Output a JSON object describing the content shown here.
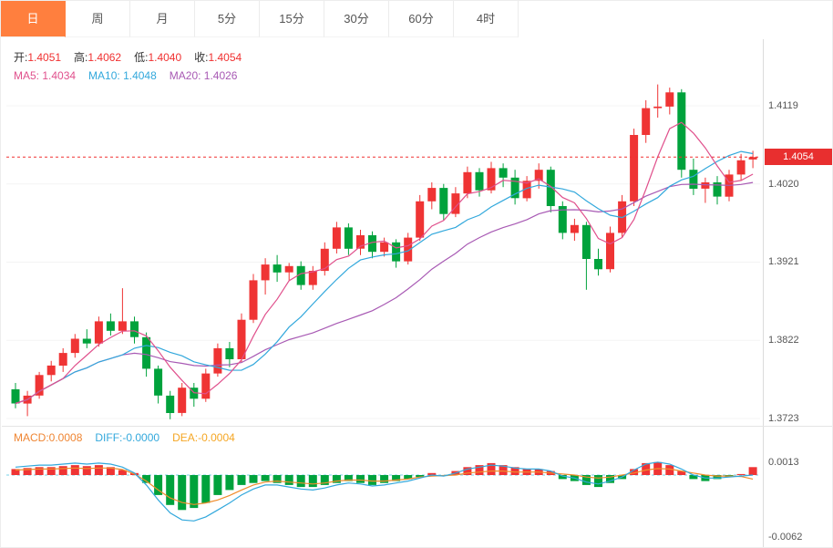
{
  "tabs": [
    {
      "name": "day",
      "label": "日",
      "active": true
    },
    {
      "name": "week",
      "label": "周",
      "active": false
    },
    {
      "name": "month",
      "label": "月",
      "active": false
    },
    {
      "name": "5min",
      "label": "5分",
      "active": false
    },
    {
      "name": "15min",
      "label": "15分",
      "active": false
    },
    {
      "name": "30min",
      "label": "30分",
      "active": false
    },
    {
      "name": "60min",
      "label": "60分",
      "active": false
    },
    {
      "name": "4hour",
      "label": "4时",
      "active": false
    }
  ],
  "info": {
    "ohlc": [
      {
        "name": "open",
        "label": "开:",
        "value": "1.4051"
      },
      {
        "name": "high",
        "label": "高:",
        "value": "1.4062"
      },
      {
        "name": "low",
        "label": "低:",
        "value": "1.4040"
      },
      {
        "name": "close",
        "label": "收:",
        "value": "1.4054"
      }
    ],
    "ma": [
      {
        "name": "ma5",
        "label": "MA5: ",
        "value": "1.4034",
        "color": "#e0508c"
      },
      {
        "name": "ma10",
        "label": "MA10: ",
        "value": "1.4048",
        "color": "#32a8dc"
      },
      {
        "name": "ma20",
        "label": "MA20: ",
        "value": "1.4026",
        "color": "#a85ab4"
      }
    ],
    "macd": [
      {
        "name": "macd",
        "label": "MACD:",
        "value": "0.0008",
        "color": "#ef8532"
      },
      {
        "name": "diff",
        "label": "DIFF:",
        "value": "-0.0000",
        "color": "#32a8dc"
      },
      {
        "name": "dea",
        "label": "DEA:",
        "value": "-0.0004",
        "color": "#f5a623"
      }
    ]
  },
  "axis": {
    "current_price": "1.4054"
  },
  "colors": {
    "up": "#ef3434",
    "down": "#00a23c",
    "tab_active": "#ff7f3e",
    "price_line": "#f03030",
    "price_badge_bg": "#e82f2f",
    "macd_zero_line": "#7ad0e8",
    "diff_line": "#32a8dc",
    "dea_line": "#f08c2c",
    "ma5_line": "#e0508c",
    "ma10_line": "#32a8dc",
    "ma20_line": "#a85ab4"
  },
  "chart_data": [
    {
      "type": "candlestick",
      "name": "daily-kline",
      "ohlc_display": {
        "open": 1.4051,
        "high": 1.4062,
        "low": 1.404,
        "close": 1.4054
      },
      "ma_display": {
        "MA5": 1.4034,
        "MA10": 1.4048,
        "MA20": 1.4026
      },
      "current_price": 1.4054,
      "y_axis_ticks": [
        1.4119,
        1.402,
        1.3921,
        1.3822,
        1.3723
      ],
      "ylim": [
        1.37,
        1.42
      ],
      "candles": [
        [
          1.376,
          1.3768,
          1.3736,
          1.3742
        ],
        [
          1.3742,
          1.3758,
          1.3726,
          1.3752
        ],
        [
          1.3752,
          1.3782,
          1.3748,
          1.3778
        ],
        [
          1.3778,
          1.3796,
          1.377,
          1.379
        ],
        [
          1.379,
          1.3812,
          1.3782,
          1.3806
        ],
        [
          1.3806,
          1.383,
          1.38,
          1.3824
        ],
        [
          1.3824,
          1.3836,
          1.3812,
          1.3818
        ],
        [
          1.3818,
          1.3852,
          1.3814,
          1.3846
        ],
        [
          1.3846,
          1.3856,
          1.3828,
          1.3834
        ],
        [
          1.3834,
          1.3888,
          1.383,
          1.3846
        ],
        [
          1.3846,
          1.3852,
          1.3818,
          1.3826
        ],
        [
          1.3826,
          1.3832,
          1.3776,
          1.3786
        ],
        [
          1.3786,
          1.379,
          1.3742,
          1.3752
        ],
        [
          1.3752,
          1.3758,
          1.3722,
          1.373
        ],
        [
          1.373,
          1.3768,
          1.3726,
          1.3762
        ],
        [
          1.3762,
          1.3768,
          1.3738,
          1.3748
        ],
        [
          1.3748,
          1.3786,
          1.3744,
          1.378
        ],
        [
          1.378,
          1.3818,
          1.3776,
          1.3812
        ],
        [
          1.3812,
          1.382,
          1.3788,
          1.3798
        ],
        [
          1.3798,
          1.3856,
          1.3794,
          1.3848
        ],
        [
          1.3848,
          1.3906,
          1.3844,
          1.3898
        ],
        [
          1.3898,
          1.3926,
          1.388,
          1.3918
        ],
        [
          1.3918,
          1.393,
          1.3896,
          1.3908
        ],
        [
          1.3908,
          1.392,
          1.3898,
          1.3916
        ],
        [
          1.3916,
          1.3922,
          1.3886,
          1.3892
        ],
        [
          1.3892,
          1.3916,
          1.3886,
          1.391
        ],
        [
          1.391,
          1.3946,
          1.3904,
          1.3938
        ],
        [
          1.3938,
          1.3972,
          1.3932,
          1.3965
        ],
        [
          1.3965,
          1.397,
          1.393,
          1.3938
        ],
        [
          1.3938,
          1.3962,
          1.393,
          1.3955
        ],
        [
          1.3955,
          1.396,
          1.3926,
          1.3934
        ],
        [
          1.3934,
          1.3952,
          1.3928,
          1.3946
        ],
        [
          1.3946,
          1.395,
          1.3914,
          1.3922
        ],
        [
          1.3922,
          1.3958,
          1.3918,
          1.3952
        ],
        [
          1.3952,
          1.4006,
          1.3948,
          1.3998
        ],
        [
          1.3998,
          1.4022,
          1.3988,
          1.4015
        ],
        [
          1.4015,
          1.402,
          1.3974,
          1.3982
        ],
        [
          1.3982,
          1.4016,
          1.3978,
          1.4008
        ],
        [
          1.4008,
          1.4042,
          1.4002,
          1.4035
        ],
        [
          1.4035,
          1.404,
          1.4004,
          1.4012
        ],
        [
          1.4012,
          1.4048,
          1.4008,
          1.404
        ],
        [
          1.404,
          1.4046,
          1.4016,
          1.4028
        ],
        [
          1.4028,
          1.4038,
          1.3994,
          1.4002
        ],
        [
          1.4002,
          1.403,
          1.3998,
          1.4024
        ],
        [
          1.4024,
          1.4046,
          1.4014,
          1.4038
        ],
        [
          1.4038,
          1.4042,
          1.3984,
          1.3992
        ],
        [
          1.3992,
          1.3998,
          1.395,
          1.3958
        ],
        [
          1.3958,
          1.3976,
          1.3948,
          1.3968
        ],
        [
          1.3968,
          1.3972,
          1.3886,
          1.3925
        ],
        [
          1.3925,
          1.3938,
          1.3904,
          1.3912
        ],
        [
          1.3912,
          1.3966,
          1.3908,
          1.3958
        ],
        [
          1.3958,
          1.4006,
          1.3952,
          1.3998
        ],
        [
          1.3998,
          1.409,
          1.3992,
          1.4082
        ],
        [
          1.4082,
          1.4126,
          1.4072,
          1.4116
        ],
        [
          1.4116,
          1.4146,
          1.4104,
          1.4118
        ],
        [
          1.4118,
          1.4142,
          1.4108,
          1.4136
        ],
        [
          1.4136,
          1.414,
          1.4028,
          1.4038
        ],
        [
          1.4038,
          1.4052,
          1.4006,
          1.4014
        ],
        [
          1.4014,
          1.4028,
          1.3996,
          1.4022
        ],
        [
          1.4022,
          1.403,
          1.3994,
          1.4004
        ],
        [
          1.4004,
          1.4038,
          1.3998,
          1.4032
        ],
        [
          1.4032,
          1.4058,
          1.4024,
          1.405
        ],
        [
          1.4051,
          1.4062,
          1.404,
          1.4054
        ]
      ]
    },
    {
      "type": "bar",
      "name": "macd-indicator",
      "values_display": {
        "MACD": 0.0008,
        "DIFF": -0.0,
        "DEA": -0.0004
      },
      "y_axis_ticks": [
        0.0013,
        -0.0062
      ],
      "bars": [
        0.0006,
        0.0007,
        0.0008,
        0.0008,
        0.0009,
        0.001,
        0.0009,
        0.001,
        0.0008,
        0.0005,
        0.0002,
        -0.0008,
        -0.002,
        -0.003,
        -0.0035,
        -0.0033,
        -0.0028,
        -0.002,
        -0.0015,
        -0.001,
        -0.0008,
        -0.0006,
        -0.0008,
        -0.001,
        -0.0012,
        -0.0012,
        -0.001,
        -0.0008,
        -0.0006,
        -0.0008,
        -0.001,
        -0.0008,
        -0.0006,
        -0.0004,
        -0.0002,
        0.0002,
        -0.0001,
        0.0004,
        0.0008,
        0.001,
        0.0012,
        0.001,
        0.0008,
        0.0006,
        0.0006,
        0.0004,
        -0.0004,
        -0.0006,
        -0.001,
        -0.0012,
        -0.0008,
        -0.0004,
        0.0006,
        0.0012,
        0.0013,
        0.001,
        0.0004,
        -0.0004,
        -0.0006,
        -0.0004,
        -0.0002,
        0.0001,
        0.0008
      ],
      "diff": [
        0.0008,
        0.0009,
        0.001,
        0.001,
        0.0011,
        0.0012,
        0.0011,
        0.0012,
        0.0011,
        0.0008,
        0.0002,
        -0.001,
        -0.0025,
        -0.0038,
        -0.0045,
        -0.0046,
        -0.0042,
        -0.0035,
        -0.0028,
        -0.002,
        -0.0014,
        -0.001,
        -0.001,
        -0.0012,
        -0.0014,
        -0.0015,
        -0.0013,
        -0.001,
        -0.0008,
        -0.0009,
        -0.0011,
        -0.001,
        -0.0008,
        -0.0006,
        -0.0003,
        0.0,
        -0.0001,
        0.0002,
        0.0006,
        0.0008,
        0.001,
        0.0009,
        0.0007,
        0.0006,
        0.0006,
        0.0004,
        -0.0001,
        -0.0003,
        -0.0007,
        -0.0009,
        -0.0006,
        -0.0002,
        0.0005,
        0.0011,
        0.0013,
        0.0011,
        0.0006,
        0.0,
        -0.0003,
        -0.0003,
        -0.0002,
        -0.0001,
        0.0
      ]
    }
  ]
}
